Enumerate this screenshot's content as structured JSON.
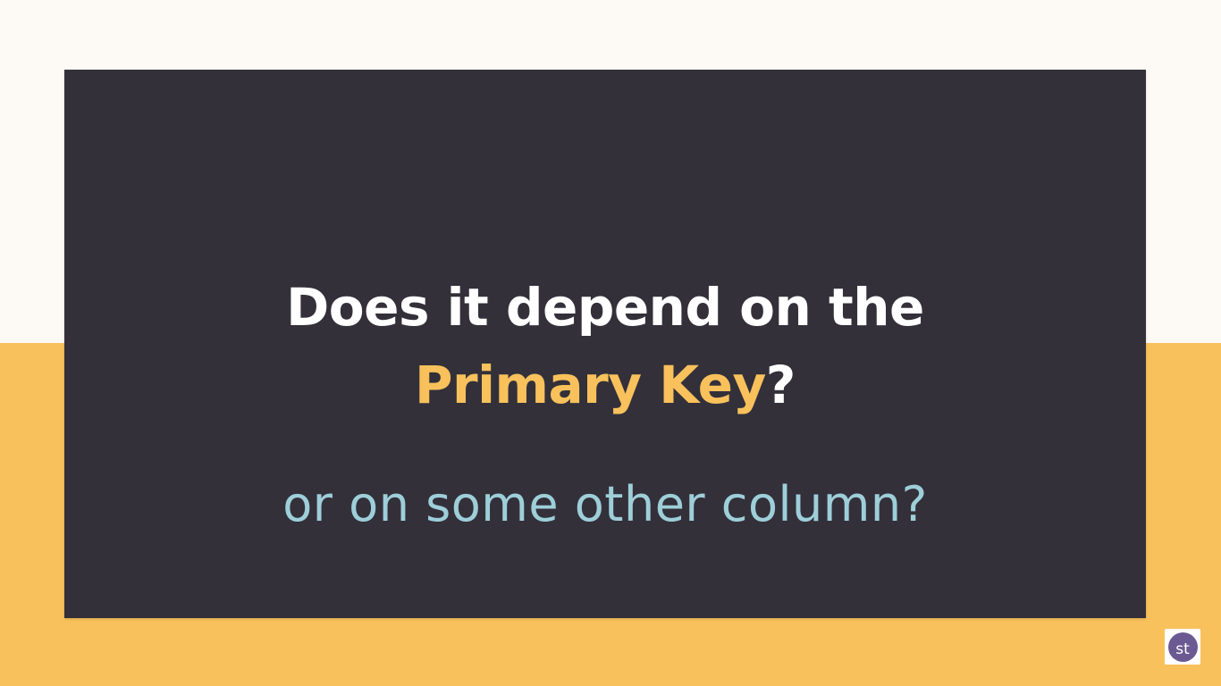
{
  "slide": {
    "line1": "Does it depend on the",
    "line2_highlight": "Primary Key",
    "line2_suffix": "?",
    "subtitle": "or on some other column?"
  },
  "channel_logo": {
    "text": "st"
  },
  "colors": {
    "background_top": "#fdfaf5",
    "background_bottom": "#f8c15b",
    "card": "#33303a",
    "headline": "#ffffff",
    "highlight": "#f8c15b",
    "subtitle": "#9ecfd9",
    "logo_circle": "#6b5a92"
  }
}
